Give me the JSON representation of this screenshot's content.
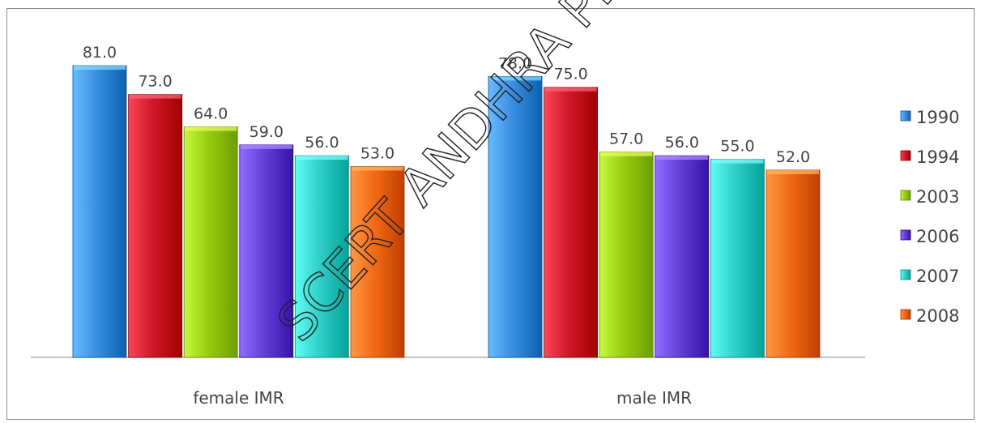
{
  "chart_data": {
    "type": "bar",
    "title": "",
    "xlabel": "",
    "ylabel": "",
    "categories": [
      "female IMR",
      "male IMR"
    ],
    "series": [
      {
        "name": "1990",
        "values": [
          81.0,
          78.0
        ],
        "color": "#3a8ee0"
      },
      {
        "name": "1994",
        "values": [
          73.0,
          75.0
        ],
        "color": "#d0182a"
      },
      {
        "name": "2003",
        "values": [
          64.0,
          57.0
        ],
        "color": "#98cc10"
      },
      {
        "name": "2006",
        "values": [
          59.0,
          56.0
        ],
        "color": "#6440d8"
      },
      {
        "name": "2007",
        "values": [
          56.0,
          55.0
        ],
        "color": "#30d0c8"
      },
      {
        "name": "2008",
        "values": [
          53.0,
          52.0
        ],
        "color": "#f06a14"
      }
    ],
    "ylim": [
      0,
      81
    ],
    "data_labels": true,
    "grid": false,
    "legend_position": "right"
  },
  "watermark": "SCERT ANDHRA PRADESH"
}
